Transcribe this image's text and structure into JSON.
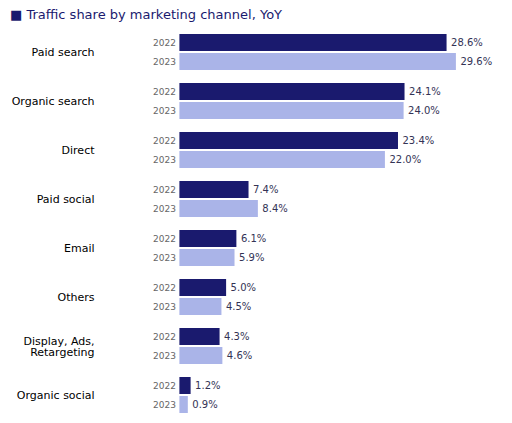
{
  "chart_data": {
    "type": "bar",
    "title": "■ Traffic share by marketing channel, YoY",
    "orientation": "horizontal",
    "categories": [
      "Paid search",
      "Organic search",
      "Direct",
      "Paid social",
      "Email",
      "Others",
      "Display, Ads,\nRetargeting",
      "Organic social"
    ],
    "series": [
      {
        "name": "2022",
        "color": "#1a1a6e",
        "values": [
          28.6,
          24.1,
          23.4,
          7.4,
          6.1,
          5.0,
          4.3,
          1.2
        ],
        "value_labels": [
          "28.6%",
          "24.1%",
          "23.4%",
          "7.4%",
          "6.1%",
          "5.0%",
          "4.3%",
          "1.2%"
        ]
      },
      {
        "name": "2023",
        "color": "#aab4e8",
        "values": [
          29.6,
          24.0,
          22.0,
          8.4,
          5.9,
          4.5,
          4.6,
          0.9
        ],
        "value_labels": [
          "29.6%",
          "24.0%",
          "22.0%",
          "8.4%",
          "5.9%",
          "4.5%",
          "4.6%",
          "0.9%"
        ]
      }
    ],
    "xlim": [
      -8.5,
      34.0
    ],
    "data_labels": true,
    "tick_labels": "y",
    "grid": false
  }
}
